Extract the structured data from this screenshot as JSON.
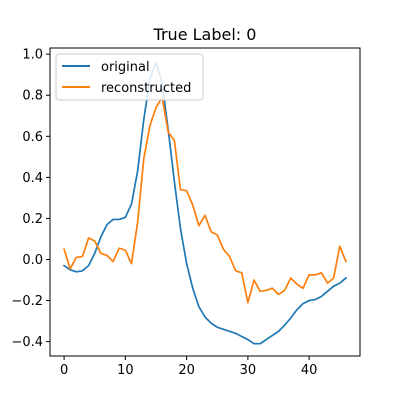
{
  "chart_data": {
    "type": "line",
    "title": "True Label: 0",
    "xlabel": "",
    "ylabel": "",
    "xlim": [
      -2.3,
      48.3
    ],
    "ylim": [
      -0.47,
      1.03
    ],
    "xticks": [
      0,
      10,
      20,
      30,
      40
    ],
    "xtick_labels": [
      "0",
      "10",
      "20",
      "30",
      "40"
    ],
    "yticks": [
      -0.4,
      -0.2,
      0.0,
      0.2,
      0.4,
      0.6,
      0.8,
      1.0
    ],
    "ytick_labels": [
      "−0.4",
      "−0.2",
      "0.0",
      "0.2",
      "0.4",
      "0.6",
      "0.8",
      "1.0"
    ],
    "grid": false,
    "legend_position": "top-left",
    "x": [
      0,
      1,
      2,
      3,
      4,
      5,
      6,
      7,
      8,
      9,
      10,
      11,
      12,
      13,
      14,
      15,
      16,
      17,
      18,
      19,
      20,
      21,
      22,
      23,
      24,
      25,
      26,
      27,
      28,
      29,
      30,
      31,
      32,
      33,
      34,
      35,
      36,
      37,
      38,
      39,
      40,
      41,
      42,
      43,
      44,
      45,
      46
    ],
    "series": [
      {
        "name": "original",
        "color": "#1f77b4",
        "values": [
          -0.03,
          -0.05,
          -0.06,
          -0.055,
          -0.03,
          0.03,
          0.11,
          0.17,
          0.195,
          0.195,
          0.205,
          0.27,
          0.43,
          0.68,
          0.88,
          0.96,
          0.86,
          0.63,
          0.38,
          0.15,
          -0.02,
          -0.14,
          -0.23,
          -0.28,
          -0.31,
          -0.33,
          -0.34,
          -0.35,
          -0.36,
          -0.375,
          -0.39,
          -0.41,
          -0.41,
          -0.39,
          -0.37,
          -0.35,
          -0.32,
          -0.285,
          -0.245,
          -0.215,
          -0.2,
          -0.195,
          -0.18,
          -0.155,
          -0.13,
          -0.115,
          -0.09
        ]
      },
      {
        "name": "reconstructed",
        "color": "#ff7f0e",
        "values": [
          0.05,
          -0.045,
          0.01,
          0.015,
          0.105,
          0.09,
          0.03,
          0.02,
          -0.01,
          0.055,
          0.045,
          -0.02,
          0.18,
          0.49,
          0.65,
          0.74,
          0.79,
          0.62,
          0.58,
          0.34,
          0.335,
          0.265,
          0.165,
          0.215,
          0.135,
          0.12,
          0.05,
          0.015,
          -0.055,
          -0.065,
          -0.21,
          -0.1,
          -0.155,
          -0.15,
          -0.14,
          -0.17,
          -0.15,
          -0.09,
          -0.12,
          -0.14,
          -0.075,
          -0.075,
          -0.065,
          -0.115,
          -0.09,
          0.065,
          -0.01
        ]
      }
    ]
  }
}
